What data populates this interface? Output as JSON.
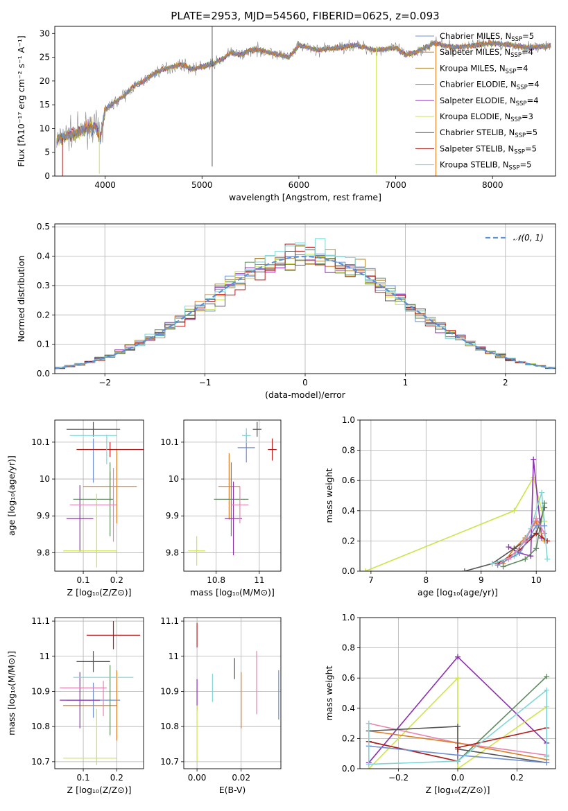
{
  "figure_title": "PLATE=2953, MJD=54560, FIBERID=0625, z=0.093",
  "colors": {
    "Chabrier MILES": "#6f8fd6",
    "Salpeter MILES": "#e07b22",
    "Kroupa MILES": "#b5892f",
    "Chabrier ELODIE": "#5f8a5f",
    "Salpeter ELODIE": "#8e2fb2",
    "Kroupa ELODIE": "#cfe34a",
    "Chabrier STELIB": "#555555",
    "Salpeter STELIB": "#b31b1b",
    "Kroupa STELIB": "#7fd6d6",
    "pink": "#e684b0",
    "gauss": "#5b8fd6"
  },
  "chart_data": [
    {
      "type": "line",
      "panel": "spectrum",
      "title": "PLATE=2953, MJD=54560, FIBERID=0625, z=0.093",
      "xlabel": "wavelength [Angstrom, rest frame]",
      "ylabel": "Flux [fλ10⁻¹⁷ erg cm⁻² s⁻¹ A⁻¹]",
      "xlim": [
        3480,
        8650
      ],
      "ylim": [
        0,
        31.5
      ],
      "xticks": [
        4000,
        5000,
        6000,
        7000,
        8000
      ],
      "yticks": [
        0,
        5,
        10,
        15,
        20,
        25,
        30
      ],
      "legend_position": "top-right",
      "legend": [
        {
          "label": "Chabrier MILES, N",
          "sub": "SSP",
          "suffix": "=5",
          "color": "Chabrier MILES"
        },
        {
          "label": "Salpeter MILES, N",
          "sub": "SSP",
          "suffix": "=4",
          "color": "Salpeter MILES"
        },
        {
          "label": "Kroupa MILES, N",
          "sub": "SSP",
          "suffix": "=4",
          "color": "Kroupa MILES"
        },
        {
          "label": "Chabrier ELODIE, N",
          "sub": "SSP",
          "suffix": "=4",
          "color": "Chabrier ELODIE"
        },
        {
          "label": "Salpeter ELODIE, N",
          "sub": "SSP",
          "suffix": "=4",
          "color": "Salpeter ELODIE"
        },
        {
          "label": "Kroupa ELODIE, N",
          "sub": "SSP",
          "suffix": "=3",
          "color": "Kroupa ELODIE"
        },
        {
          "label": "Chabrier STELIB, N",
          "sub": "SSP",
          "suffix": "=5",
          "color": "Chabrier STELIB"
        },
        {
          "label": "Salpeter STELIB, N",
          "sub": "SSP",
          "suffix": "=5",
          "color": "Salpeter STELIB"
        },
        {
          "label": "Kroupa STELIB, N",
          "sub": "SSP",
          "suffix": "=5",
          "color": "Kroupa STELIB"
        }
      ],
      "continuum": {
        "x": [
          3500,
          3600,
          3700,
          3800,
          3900,
          3950,
          4000,
          4100,
          4200,
          4300,
          4400,
          4500,
          4600,
          4700,
          4800,
          4900,
          5000,
          5100,
          5200,
          5300,
          5400,
          5500,
          5600,
          5800,
          5900,
          6000,
          6200,
          6400,
          6600,
          6800,
          7000,
          7100,
          7200,
          7400,
          7600,
          7800,
          8000,
          8200,
          8400,
          8600
        ],
        "y": [
          7.5,
          8.5,
          9.0,
          10.0,
          10.5,
          8.0,
          14.0,
          15.5,
          17.0,
          19.0,
          20.0,
          21.5,
          22.5,
          23.0,
          23.5,
          22.5,
          23.0,
          23.5,
          24.5,
          26.0,
          25.5,
          26.5,
          26.5,
          25.5,
          25.0,
          27.5,
          26.5,
          27.0,
          27.5,
          26.5,
          27.0,
          25.5,
          26.0,
          28.0,
          27.0,
          27.5,
          28.0,
          27.5,
          27.0,
          27.5
        ]
      },
      "sharp_features": [
        {
          "x": 5105,
          "y0": 2,
          "y1": 31.5,
          "color": "Chabrier STELIB"
        },
        {
          "x": 6800,
          "y0": 0.5,
          "y1": 27,
          "color": "Kroupa ELODIE"
        },
        {
          "x": 7415,
          "y0": 0,
          "y1": 28,
          "color": "Salpeter MILES"
        },
        {
          "x": 3940,
          "y0": 0.5,
          "y1": 10,
          "color": "Kroupa ELODIE"
        },
        {
          "x": 3560,
          "y0": 0,
          "y1": 8,
          "color": "Salpeter STELIB"
        }
      ]
    },
    {
      "type": "bar",
      "panel": "residual-histogram",
      "xlabel": "(data-model)/error",
      "ylabel": "Normed distribution",
      "xlim": [
        -2.5,
        2.5
      ],
      "ylim": [
        0,
        0.51
      ],
      "xticks": [
        -2,
        -1,
        0,
        1,
        2
      ],
      "yticks": [
        0.0,
        0.1,
        0.2,
        0.3,
        0.4,
        0.5
      ],
      "bin_width": 0.1,
      "gaussian_label": "𝒩(0, 1)",
      "legend_position": "top-right",
      "series_colors": [
        "Chabrier MILES",
        "Salpeter MILES",
        "Kroupa MILES",
        "Chabrier ELODIE",
        "Salpeter ELODIE",
        "Kroupa ELODIE",
        "Chabrier STELIB",
        "Salpeter STELIB",
        "Kroupa STELIB"
      ]
    },
    {
      "type": "scatter",
      "panel": "Z-vs-age",
      "xlabel": "Z [log₁₀(Z/Z⊙)]",
      "ylabel": "age  [log₁₀(age/yr)]",
      "xlim": [
        0.015,
        0.28
      ],
      "ylim": [
        9.75,
        10.16
      ],
      "xticks": [
        0.1,
        0.2
      ],
      "yticks": [
        9.8,
        9.9,
        10.0,
        10.1
      ],
      "points": [
        {
          "x": 0.13,
          "y": 10.05,
          "xe": 0.0,
          "ye": 0.06,
          "color": "Chabrier MILES"
        },
        {
          "x": 0.18,
          "y": 9.98,
          "xe": 0.08,
          "ye": 0.04,
          "color": "Salpeter MILES"
        },
        {
          "x": 0.2,
          "y": 9.98,
          "xe": 0.0,
          "ye": 0.1,
          "color": "Salpeter MILES"
        },
        {
          "x": 0.13,
          "y": 9.945,
          "xe": 0.06,
          "ye": 0.0,
          "color": "Chabrier ELODIE"
        },
        {
          "x": 0.18,
          "y": 9.945,
          "xe": 0.0,
          "ye": 0.1,
          "color": "Chabrier ELODIE"
        },
        {
          "x": 0.09,
          "y": 9.893,
          "xe": 0.04,
          "ye": 0.09,
          "color": "Salpeter ELODIE"
        },
        {
          "x": 0.12,
          "y": 9.805,
          "xe": 0.08,
          "ye": 0.0,
          "color": "Kroupa ELODIE"
        },
        {
          "x": 0.14,
          "y": 9.86,
          "xe": 0.0,
          "ye": 0.1,
          "color": "Kroupa ELODIE"
        },
        {
          "x": 0.13,
          "y": 10.135,
          "xe": 0.08,
          "ye": 0.02,
          "color": "Chabrier STELIB"
        },
        {
          "x": 0.18,
          "y": 10.08,
          "xe": 0.1,
          "ye": 0.02,
          "color": "Salpeter STELIB"
        },
        {
          "x": 0.13,
          "y": 10.118,
          "xe": 0.07,
          "ye": 0.0,
          "color": "Kroupa STELIB"
        },
        {
          "x": 0.17,
          "y": 10.08,
          "xe": 0.0,
          "ye": 0.04,
          "color": "Kroupa STELIB"
        },
        {
          "x": 0.13,
          "y": 9.93,
          "xe": 0.07,
          "ye": 0.0,
          "color": "pink"
        },
        {
          "x": 0.19,
          "y": 9.93,
          "xe": 0.0,
          "ye": 0.1,
          "color": "pink"
        }
      ]
    },
    {
      "type": "scatter",
      "panel": "mass-vs-age",
      "xlabel": "mass [log₁₀(M/M⊙)]",
      "ylabel": "",
      "xlim": [
        10.65,
        11.1
      ],
      "ylim": [
        9.75,
        10.16
      ],
      "xticks": [
        10.8,
        11.0
      ],
      "yticks": [
        9.8,
        9.9,
        10.0,
        10.1
      ],
      "points": [
        {
          "x": 10.94,
          "y": 10.085,
          "xe": 0.04,
          "ye": 0.04,
          "color": "Chabrier MILES"
        },
        {
          "x": 10.86,
          "y": 9.98,
          "xe": 0.05,
          "ye": 0.09,
          "color": "Salpeter MILES"
        },
        {
          "x": 10.87,
          "y": 9.945,
          "xe": 0.08,
          "ye": 0.1,
          "color": "Chabrier ELODIE"
        },
        {
          "x": 10.88,
          "y": 9.893,
          "xe": 0.04,
          "ye": 0.1,
          "color": "Salpeter ELODIE"
        },
        {
          "x": 10.71,
          "y": 9.805,
          "xe": 0.04,
          "ye": 0.04,
          "color": "Kroupa ELODIE"
        },
        {
          "x": 10.99,
          "y": 10.135,
          "xe": 0.02,
          "ye": 0.02,
          "color": "Chabrier STELIB"
        },
        {
          "x": 11.06,
          "y": 10.08,
          "xe": 0.02,
          "ye": 0.03,
          "color": "Salpeter STELIB"
        },
        {
          "x": 10.94,
          "y": 10.118,
          "xe": 0.02,
          "ye": 0.02,
          "color": "Kroupa STELIB"
        },
        {
          "x": 10.91,
          "y": 9.93,
          "xe": 0.04,
          "ye": 0.05,
          "color": "pink"
        }
      ]
    },
    {
      "type": "line",
      "panel": "age-vs-mass-weight",
      "xlabel": "age  [log₁₀(age/yr)]",
      "ylabel": "mass weight",
      "xlim": [
        6.8,
        10.35
      ],
      "ylim": [
        0,
        1.0
      ],
      "xticks": [
        7,
        8,
        9,
        10
      ],
      "yticks": [
        0.0,
        0.2,
        0.4,
        0.6,
        0.8,
        1.0
      ],
      "series": [
        {
          "color": "Kroupa ELODIE",
          "x": [
            6.9,
            9.6,
            9.95,
            10.15
          ],
          "y": [
            0.0,
            0.4,
            0.62,
            0.33
          ]
        },
        {
          "color": "Salpeter ELODIE",
          "x": [
            9.5,
            9.7,
            9.9,
            9.95,
            10.1
          ],
          "y": [
            0.16,
            0.12,
            0.1,
            0.74,
            0.22
          ]
        },
        {
          "color": "Salpeter MILES",
          "x": [
            9.4,
            9.6,
            9.8,
            10.0,
            10.15
          ],
          "y": [
            0.05,
            0.15,
            0.22,
            0.33,
            0.2
          ]
        },
        {
          "color": "Chabrier STELIB",
          "x": [
            8.7,
            9.2,
            9.6,
            10.0,
            10.15
          ],
          "y": [
            0.0,
            0.05,
            0.15,
            0.25,
            0.42
          ]
        },
        {
          "color": "Salpeter STELIB",
          "x": [
            9.3,
            9.7,
            10.0,
            10.2
          ],
          "y": [
            0.05,
            0.14,
            0.25,
            0.2
          ]
        },
        {
          "color": "Kroupa STELIB",
          "x": [
            9.2,
            9.6,
            9.9,
            10.1,
            10.2
          ],
          "y": [
            0.05,
            0.1,
            0.28,
            0.52,
            0.08
          ]
        },
        {
          "color": "Chabrier ELODIE",
          "x": [
            9.4,
            9.8,
            10.0,
            10.15
          ],
          "y": [
            0.03,
            0.08,
            0.15,
            0.45
          ]
        },
        {
          "color": "Chabrier MILES",
          "x": [
            9.3,
            9.7,
            10.0,
            10.15
          ],
          "y": [
            0.04,
            0.12,
            0.3,
            0.3
          ]
        },
        {
          "color": "pink",
          "x": [
            9.5,
            9.8,
            10.0,
            10.15
          ],
          "y": [
            0.08,
            0.2,
            0.35,
            0.25
          ]
        }
      ]
    },
    {
      "type": "scatter",
      "panel": "Z-vs-mass",
      "xlabel": "Z [log₁₀(Z/Z⊙)]",
      "ylabel": "mass [log₁₀(M/M⊙)]",
      "xlim": [
        0.015,
        0.28
      ],
      "ylim": [
        10.68,
        11.11
      ],
      "xticks": [
        0.1,
        0.2
      ],
      "yticks": [
        10.7,
        10.8,
        10.9,
        11.0,
        11.1
      ],
      "points": [
        {
          "x": 0.13,
          "y": 10.875,
          "xe": 0.08,
          "ye": 0.05,
          "color": "Chabrier MILES"
        },
        {
          "x": 0.2,
          "y": 10.86,
          "xe": 0.0,
          "ye": 0.1,
          "color": "Salpeter MILES"
        },
        {
          "x": 0.12,
          "y": 10.86,
          "xe": 0.08,
          "ye": 0.0,
          "color": "Salpeter MILES"
        },
        {
          "x": 0.18,
          "y": 10.875,
          "xe": 0.0,
          "ye": 0.1,
          "color": "Chabrier ELODIE"
        },
        {
          "x": 0.09,
          "y": 10.875,
          "xe": 0.06,
          "ye": 0.08,
          "color": "Salpeter ELODIE"
        },
        {
          "x": 0.12,
          "y": 10.71,
          "xe": 0.08,
          "ye": 0.0,
          "color": "Kroupa ELODIE"
        },
        {
          "x": 0.14,
          "y": 10.77,
          "xe": 0.0,
          "ye": 0.08,
          "color": "Kroupa ELODIE"
        },
        {
          "x": 0.13,
          "y": 10.985,
          "xe": 0.05,
          "ye": 0.03,
          "color": "Chabrier STELIB"
        },
        {
          "x": 0.19,
          "y": 11.06,
          "xe": 0.08,
          "ye": 0.04,
          "color": "Salpeter STELIB"
        },
        {
          "x": 0.16,
          "y": 10.94,
          "xe": 0.09,
          "ye": 0.0,
          "color": "Kroupa STELIB"
        },
        {
          "x": 0.1,
          "y": 10.91,
          "xe": 0.07,
          "ye": 0.0,
          "color": "pink"
        },
        {
          "x": 0.16,
          "y": 10.88,
          "xe": 0.0,
          "ye": 0.05,
          "color": "pink"
        }
      ]
    },
    {
      "type": "scatter",
      "panel": "EBV-vs-mass",
      "xlabel": "E(B-V)",
      "ylabel": "",
      "xlim": [
        -0.006,
        0.038
      ],
      "ylim": [
        10.68,
        11.11
      ],
      "xticks": [
        0.0,
        0.02
      ],
      "tick_labels": [
        "0.00",
        "0.02"
      ],
      "yticks": [
        10.7,
        10.8,
        10.9,
        11.0,
        11.1
      ],
      "points": [
        {
          "x": 0.0,
          "y": 11.06,
          "xe": 0,
          "ye": 0.035,
          "color": "Salpeter STELIB"
        },
        {
          "x": 0.0,
          "y": 10.89,
          "xe": 0,
          "ye": 0.045,
          "color": "Salpeter ELODIE"
        },
        {
          "x": 0.0,
          "y": 10.78,
          "xe": 0,
          "ye": 0.08,
          "color": "Kroupa ELODIE"
        },
        {
          "x": 0.007,
          "y": 10.91,
          "xe": 0,
          "ye": 0.04,
          "color": "Kroupa STELIB"
        },
        {
          "x": 0.017,
          "y": 10.965,
          "xe": 0,
          "ye": 0.03,
          "color": "Chabrier STELIB"
        },
        {
          "x": 0.02,
          "y": 10.875,
          "xe": 0,
          "ye": 0.08,
          "color": "Salpeter MILES"
        },
        {
          "x": 0.027,
          "y": 10.925,
          "xe": 0,
          "ye": 0.09,
          "color": "pink"
        },
        {
          "x": 0.037,
          "y": 10.89,
          "xe": 0,
          "ye": 0.07,
          "color": "Chabrier MILES"
        }
      ]
    },
    {
      "type": "line",
      "panel": "Z-vs-mass-weight",
      "xlabel": "Z [log₁₀(Z/Z⊙)]",
      "ylabel": "mass weight",
      "xlim": [
        -0.33,
        0.33
      ],
      "ylim": [
        0,
        1.0
      ],
      "xticks": [
        -0.2,
        0.0,
        0.2
      ],
      "yticks": [
        0.0,
        0.2,
        0.4,
        0.6,
        0.8,
        1.0
      ],
      "series": [
        {
          "color": "Salpeter ELODIE",
          "x": [
            -0.3,
            0.0,
            0.3
          ],
          "y": [
            0.04,
            0.74,
            0.17
          ]
        },
        {
          "color": "Chabrier ELODIE",
          "x": [
            -0.3,
            0.0,
            0.3
          ],
          "y": [
            0.18,
            0.05,
            0.61
          ]
        },
        {
          "color": "Kroupa ELODIE",
          "x": [
            -0.3,
            0.0,
            0.0,
            0.3
          ],
          "y": [
            0.0,
            0.6,
            0.0,
            0.41
          ]
        },
        {
          "color": "pink",
          "x": [
            -0.3,
            0.0,
            0.3
          ],
          "y": [
            0.3,
            0.17,
            0.09
          ]
        },
        {
          "color": "Salpeter MILES",
          "x": [
            -0.3,
            0.0,
            0.3
          ],
          "y": [
            0.25,
            0.17,
            0.06
          ]
        },
        {
          "color": "Chabrier STELIB",
          "x": [
            -0.3,
            0.0,
            0.0,
            0.3
          ],
          "y": [
            0.25,
            0.28,
            0.13,
            0.04
          ]
        },
        {
          "color": "Salpeter STELIB",
          "x": [
            -0.3,
            0.0,
            0.0,
            0.3
          ],
          "y": [
            0.18,
            0.05,
            0.14,
            0.27
          ]
        },
        {
          "color": "Chabrier MILES",
          "x": [
            -0.3,
            0.0,
            0.3
          ],
          "y": [
            0.15,
            0.09,
            0.04
          ]
        },
        {
          "color": "Kroupa STELIB",
          "x": [
            -0.3,
            -0.3,
            0.0,
            0.3,
            0.3
          ],
          "y": [
            0.3,
            0.03,
            0.05,
            0.52,
            0.08
          ]
        }
      ]
    }
  ]
}
